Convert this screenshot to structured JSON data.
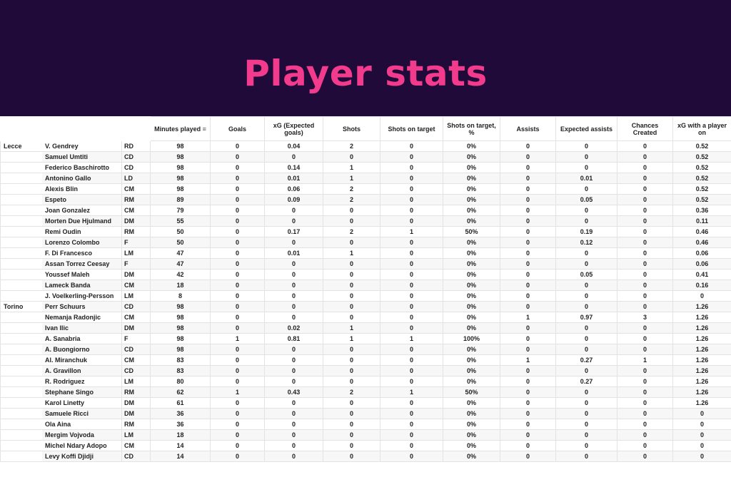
{
  "banner": {
    "title": "Player stats"
  },
  "table": {
    "headers": {
      "minutes": "Minutes played",
      "goals": "Goals",
      "xg": "xG (Expected goals)",
      "shots": "Shots",
      "sot": "Shots on target",
      "sot_pct": "Shots on target, %",
      "assists": "Assists",
      "xa": "Expected assists",
      "chances": "Chances Created",
      "xg_on": "xG with a player on"
    },
    "sort_icon": "sort-icon",
    "rows": [
      {
        "team": "Lecce",
        "name": "V. Gendrey",
        "pos": "RD",
        "min": "98",
        "goals": "0",
        "xg": "0.04",
        "shots": "2",
        "sot": "0",
        "sotp": "0%",
        "ast": "0",
        "xa": "0",
        "cc": "0",
        "xgon": "0.52"
      },
      {
        "team": "",
        "name": "Samuel Umtiti",
        "pos": "CD",
        "min": "98",
        "goals": "0",
        "xg": "0",
        "shots": "0",
        "sot": "0",
        "sotp": "0%",
        "ast": "0",
        "xa": "0",
        "cc": "0",
        "xgon": "0.52"
      },
      {
        "team": "",
        "name": "Federico Baschirotto",
        "pos": "CD",
        "min": "98",
        "goals": "0",
        "xg": "0.14",
        "shots": "1",
        "sot": "0",
        "sotp": "0%",
        "ast": "0",
        "xa": "0",
        "cc": "0",
        "xgon": "0.52"
      },
      {
        "team": "",
        "name": "Antonino Gallo",
        "pos": "LD",
        "min": "98",
        "goals": "0",
        "xg": "0.01",
        "shots": "1",
        "sot": "0",
        "sotp": "0%",
        "ast": "0",
        "xa": "0.01",
        "cc": "0",
        "xgon": "0.52"
      },
      {
        "team": "",
        "name": "Alexis Blin",
        "pos": "CM",
        "min": "98",
        "goals": "0",
        "xg": "0.06",
        "shots": "2",
        "sot": "0",
        "sotp": "0%",
        "ast": "0",
        "xa": "0",
        "cc": "0",
        "xgon": "0.52"
      },
      {
        "team": "",
        "name": "Espeto",
        "pos": "RM",
        "min": "89",
        "goals": "0",
        "xg": "0.09",
        "shots": "2",
        "sot": "0",
        "sotp": "0%",
        "ast": "0",
        "xa": "0.05",
        "cc": "0",
        "xgon": "0.52"
      },
      {
        "team": "",
        "name": "Joan Gonzalez",
        "pos": "CM",
        "min": "79",
        "goals": "0",
        "xg": "0",
        "shots": "0",
        "sot": "0",
        "sotp": "0%",
        "ast": "0",
        "xa": "0",
        "cc": "0",
        "xgon": "0.36"
      },
      {
        "team": "",
        "name": "Morten Due Hjulmand",
        "pos": "DM",
        "min": "55",
        "goals": "0",
        "xg": "0",
        "shots": "0",
        "sot": "0",
        "sotp": "0%",
        "ast": "0",
        "xa": "0",
        "cc": "0",
        "xgon": "0.11"
      },
      {
        "team": "",
        "name": "Remi Oudin",
        "pos": "RM",
        "min": "50",
        "goals": "0",
        "xg": "0.17",
        "shots": "2",
        "sot": "1",
        "sotp": "50%",
        "ast": "0",
        "xa": "0.19",
        "cc": "0",
        "xgon": "0.46"
      },
      {
        "team": "",
        "name": "Lorenzo Colombo",
        "pos": "F",
        "min": "50",
        "goals": "0",
        "xg": "0",
        "shots": "0",
        "sot": "0",
        "sotp": "0%",
        "ast": "0",
        "xa": "0.12",
        "cc": "0",
        "xgon": "0.46"
      },
      {
        "team": "",
        "name": "F. Di Francesco",
        "pos": "LM",
        "min": "47",
        "goals": "0",
        "xg": "0.01",
        "shots": "1",
        "sot": "0",
        "sotp": "0%",
        "ast": "0",
        "xa": "0",
        "cc": "0",
        "xgon": "0.06"
      },
      {
        "team": "",
        "name": "Assan Torrez Ceesay",
        "pos": "F",
        "min": "47",
        "goals": "0",
        "xg": "0",
        "shots": "0",
        "sot": "0",
        "sotp": "0%",
        "ast": "0",
        "xa": "0",
        "cc": "0",
        "xgon": "0.06"
      },
      {
        "team": "",
        "name": "Youssef Maleh",
        "pos": "DM",
        "min": "42",
        "goals": "0",
        "xg": "0",
        "shots": "0",
        "sot": "0",
        "sotp": "0%",
        "ast": "0",
        "xa": "0.05",
        "cc": "0",
        "xgon": "0.41"
      },
      {
        "team": "",
        "name": "Lameck Banda",
        "pos": "CM",
        "min": "18",
        "goals": "0",
        "xg": "0",
        "shots": "0",
        "sot": "0",
        "sotp": "0%",
        "ast": "0",
        "xa": "0",
        "cc": "0",
        "xgon": "0.16"
      },
      {
        "team": "",
        "name": "J. Voelkerling-Persson",
        "pos": "LM",
        "min": "8",
        "goals": "0",
        "xg": "0",
        "shots": "0",
        "sot": "0",
        "sotp": "0%",
        "ast": "0",
        "xa": "0",
        "cc": "0",
        "xgon": "0"
      },
      {
        "team": "Torino",
        "name": "Perr Schuurs",
        "pos": "CD",
        "min": "98",
        "goals": "0",
        "xg": "0",
        "shots": "0",
        "sot": "0",
        "sotp": "0%",
        "ast": "0",
        "xa": "0",
        "cc": "0",
        "xgon": "1.26"
      },
      {
        "team": "",
        "name": "Nemanja Radonjic",
        "pos": "CM",
        "min": "98",
        "goals": "0",
        "xg": "0",
        "shots": "0",
        "sot": "0",
        "sotp": "0%",
        "ast": "1",
        "xa": "0.97",
        "cc": "3",
        "xgon": "1.26"
      },
      {
        "team": "",
        "name": "Ivan Ilic",
        "pos": "DM",
        "min": "98",
        "goals": "0",
        "xg": "0.02",
        "shots": "1",
        "sot": "0",
        "sotp": "0%",
        "ast": "0",
        "xa": "0",
        "cc": "0",
        "xgon": "1.26"
      },
      {
        "team": "",
        "name": "A. Sanabria",
        "pos": "F",
        "min": "98",
        "goals": "1",
        "xg": "0.81",
        "shots": "1",
        "sot": "1",
        "sotp": "100%",
        "ast": "0",
        "xa": "0",
        "cc": "0",
        "xgon": "1.26"
      },
      {
        "team": "",
        "name": "A. Buongiorno",
        "pos": "CD",
        "min": "98",
        "goals": "0",
        "xg": "0",
        "shots": "0",
        "sot": "0",
        "sotp": "0%",
        "ast": "0",
        "xa": "0",
        "cc": "0",
        "xgon": "1.26"
      },
      {
        "team": "",
        "name": "Al. Miranchuk",
        "pos": "CM",
        "min": "83",
        "goals": "0",
        "xg": "0",
        "shots": "0",
        "sot": "0",
        "sotp": "0%",
        "ast": "1",
        "xa": "0.27",
        "cc": "1",
        "xgon": "1.26"
      },
      {
        "team": "",
        "name": "A. Gravillon",
        "pos": "CD",
        "min": "83",
        "goals": "0",
        "xg": "0",
        "shots": "0",
        "sot": "0",
        "sotp": "0%",
        "ast": "0",
        "xa": "0",
        "cc": "0",
        "xgon": "1.26"
      },
      {
        "team": "",
        "name": "R. Rodriguez",
        "pos": "LM",
        "min": "80",
        "goals": "0",
        "xg": "0",
        "shots": "0",
        "sot": "0",
        "sotp": "0%",
        "ast": "0",
        "xa": "0.27",
        "cc": "0",
        "xgon": "1.26"
      },
      {
        "team": "",
        "name": "Stephane Singo",
        "pos": "RM",
        "min": "62",
        "goals": "1",
        "xg": "0.43",
        "shots": "2",
        "sot": "1",
        "sotp": "50%",
        "ast": "0",
        "xa": "0",
        "cc": "0",
        "xgon": "1.26"
      },
      {
        "team": "",
        "name": "Karol Linetty",
        "pos": "DM",
        "min": "61",
        "goals": "0",
        "xg": "0",
        "shots": "0",
        "sot": "0",
        "sotp": "0%",
        "ast": "0",
        "xa": "0",
        "cc": "0",
        "xgon": "1.26"
      },
      {
        "team": "",
        "name": "Samuele Ricci",
        "pos": "DM",
        "min": "36",
        "goals": "0",
        "xg": "0",
        "shots": "0",
        "sot": "0",
        "sotp": "0%",
        "ast": "0",
        "xa": "0",
        "cc": "0",
        "xgon": "0"
      },
      {
        "team": "",
        "name": "Ola Aina",
        "pos": "RM",
        "min": "36",
        "goals": "0",
        "xg": "0",
        "shots": "0",
        "sot": "0",
        "sotp": "0%",
        "ast": "0",
        "xa": "0",
        "cc": "0",
        "xgon": "0"
      },
      {
        "team": "",
        "name": "Mergim Vojvoda",
        "pos": "LM",
        "min": "18",
        "goals": "0",
        "xg": "0",
        "shots": "0",
        "sot": "0",
        "sotp": "0%",
        "ast": "0",
        "xa": "0",
        "cc": "0",
        "xgon": "0"
      },
      {
        "team": "",
        "name": "Michel Ndary Adopo",
        "pos": "CM",
        "min": "14",
        "goals": "0",
        "xg": "0",
        "shots": "0",
        "sot": "0",
        "sotp": "0%",
        "ast": "0",
        "xa": "0",
        "cc": "0",
        "xgon": "0"
      },
      {
        "team": "",
        "name": "Levy Koffi Djidji",
        "pos": "CD",
        "min": "14",
        "goals": "0",
        "xg": "0",
        "shots": "0",
        "sot": "0",
        "sotp": "0%",
        "ast": "0",
        "xa": "0",
        "cc": "0",
        "xgon": "0"
      }
    ]
  }
}
